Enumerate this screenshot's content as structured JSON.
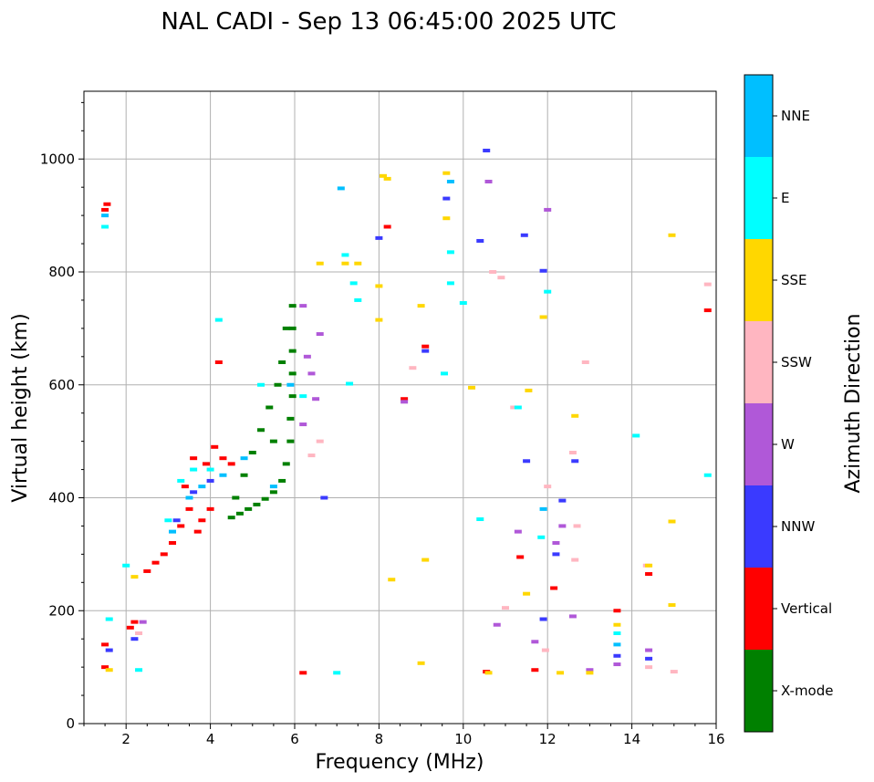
{
  "chart_data": {
    "type": "scatter",
    "title": "NAL CADI - Sep 13 06:45:00 2025 UTC",
    "xlabel": "Frequency (MHz)",
    "ylabel": "Virtual height (km)",
    "xlim": [
      1,
      16
    ],
    "ylim": [
      0,
      1120
    ],
    "xticks": [
      2,
      4,
      6,
      8,
      10,
      12,
      14,
      16
    ],
    "yticks": [
      0,
      200,
      400,
      600,
      800,
      1000
    ],
    "grid": true,
    "colorbar": {
      "label": "Azimuth Direction",
      "categories": [
        "X-mode",
        "Vertical",
        "NNW",
        "W",
        "SSW",
        "SSE",
        "E",
        "NNE"
      ],
      "colors": [
        "#008000",
        "#ff0000",
        "#3a3aff",
        "#b058d8",
        "#ffb6c1",
        "#ffd700",
        "#00ffff",
        "#00bfff"
      ]
    },
    "series": [
      {
        "name": "X-mode",
        "points": [
          [
            4.5,
            365
          ],
          [
            4.7,
            372
          ],
          [
            4.9,
            380
          ],
          [
            5.1,
            388
          ],
          [
            5.3,
            398
          ],
          [
            5.5,
            410
          ],
          [
            5.7,
            430
          ],
          [
            5.8,
            460
          ],
          [
            5.9,
            500
          ],
          [
            5.9,
            540
          ],
          [
            5.95,
            580
          ],
          [
            5.95,
            620
          ],
          [
            5.95,
            660
          ],
          [
            5.95,
            700
          ],
          [
            5.95,
            740
          ],
          [
            5.6,
            600
          ],
          [
            5.4,
            560
          ],
          [
            5.2,
            520
          ],
          [
            5.0,
            480
          ],
          [
            4.8,
            440
          ],
          [
            5.7,
            640
          ],
          [
            5.8,
            700
          ],
          [
            5.5,
            500
          ],
          [
            4.6,
            400
          ]
        ]
      },
      {
        "name": "Vertical",
        "points": [
          [
            1.5,
            100
          ],
          [
            1.5,
            140
          ],
          [
            1.5,
            910
          ],
          [
            1.55,
            920
          ],
          [
            2.1,
            170
          ],
          [
            2.2,
            180
          ],
          [
            2.5,
            270
          ],
          [
            2.7,
            285
          ],
          [
            2.9,
            300
          ],
          [
            3.1,
            320
          ],
          [
            3.3,
            350
          ],
          [
            3.4,
            420
          ],
          [
            3.5,
            380
          ],
          [
            3.6,
            470
          ],
          [
            3.7,
            340
          ],
          [
            3.8,
            360
          ],
          [
            3.9,
            460
          ],
          [
            4.0,
            380
          ],
          [
            4.1,
            490
          ],
          [
            4.2,
            640
          ],
          [
            4.3,
            470
          ],
          [
            4.5,
            460
          ],
          [
            6.2,
            90
          ],
          [
            8.2,
            880
          ],
          [
            8.6,
            575
          ],
          [
            9.1,
            668
          ],
          [
            10.55,
            92
          ],
          [
            11.35,
            295
          ],
          [
            11.7,
            95
          ],
          [
            12.15,
            240
          ],
          [
            13.65,
            200
          ],
          [
            14.4,
            265
          ],
          [
            15.8,
            732
          ]
        ]
      },
      {
        "name": "NNW",
        "points": [
          [
            1.6,
            130
          ],
          [
            2.2,
            150
          ],
          [
            3.2,
            360
          ],
          [
            3.6,
            410
          ],
          [
            4.0,
            430
          ],
          [
            6.7,
            400
          ],
          [
            8.0,
            860
          ],
          [
            9.1,
            660
          ],
          [
            9.6,
            930
          ],
          [
            10.4,
            855
          ],
          [
            10.55,
            1015
          ],
          [
            11.5,
            465
          ],
          [
            11.45,
            865
          ],
          [
            11.9,
            802
          ],
          [
            12.2,
            300
          ],
          [
            12.35,
            395
          ],
          [
            12.65,
            465
          ],
          [
            13.65,
            120
          ],
          [
            14.4,
            115
          ],
          [
            11.9,
            185
          ]
        ]
      },
      {
        "name": "W",
        "points": [
          [
            2.4,
            180
          ],
          [
            6.2,
            740
          ],
          [
            6.3,
            650
          ],
          [
            6.4,
            620
          ],
          [
            6.5,
            575
          ],
          [
            6.6,
            690
          ],
          [
            6.2,
            530
          ],
          [
            8.6,
            570
          ],
          [
            10.8,
            175
          ],
          [
            10.6,
            960
          ],
          [
            11.3,
            340
          ],
          [
            11.7,
            145
          ],
          [
            12.2,
            320
          ],
          [
            12.35,
            350
          ],
          [
            12.6,
            190
          ],
          [
            13.0,
            95
          ],
          [
            13.65,
            105
          ],
          [
            14.4,
            130
          ],
          [
            12.0,
            910
          ]
        ]
      },
      {
        "name": "SSW",
        "points": [
          [
            2.3,
            160
          ],
          [
            6.6,
            500
          ],
          [
            6.4,
            475
          ],
          [
            8.8,
            630
          ],
          [
            10.7,
            800
          ],
          [
            10.9,
            790
          ],
          [
            11.0,
            205
          ],
          [
            11.2,
            560
          ],
          [
            11.95,
            130
          ],
          [
            12.0,
            420
          ],
          [
            12.6,
            480
          ],
          [
            12.65,
            290
          ],
          [
            12.9,
            640
          ],
          [
            14.35,
            280
          ],
          [
            14.4,
            100
          ],
          [
            15.0,
            92
          ],
          [
            15.8,
            778
          ],
          [
            12.7,
            350
          ]
        ]
      },
      {
        "name": "SSE",
        "points": [
          [
            1.6,
            95
          ],
          [
            2.2,
            260
          ],
          [
            6.6,
            815
          ],
          [
            7.5,
            815
          ],
          [
            8.0,
            775
          ],
          [
            8.0,
            715
          ],
          [
            8.1,
            970
          ],
          [
            8.2,
            965
          ],
          [
            8.3,
            255
          ],
          [
            9.0,
            740
          ],
          [
            9.1,
            290
          ],
          [
            9.0,
            107
          ],
          [
            9.6,
            975
          ],
          [
            9.6,
            895
          ],
          [
            10.2,
            595
          ],
          [
            10.6,
            90
          ],
          [
            11.5,
            230
          ],
          [
            11.55,
            590
          ],
          [
            11.9,
            720
          ],
          [
            12.3,
            90
          ],
          [
            12.65,
            545
          ],
          [
            13.0,
            90
          ],
          [
            13.65,
            175
          ],
          [
            14.4,
            280
          ],
          [
            14.95,
            865
          ],
          [
            14.95,
            358
          ],
          [
            14.95,
            210
          ],
          [
            7.2,
            815
          ]
        ]
      },
      {
        "name": "E",
        "points": [
          [
            1.5,
            880
          ],
          [
            1.6,
            185
          ],
          [
            2.3,
            95
          ],
          [
            3.0,
            360
          ],
          [
            3.3,
            430
          ],
          [
            3.6,
            450
          ],
          [
            4.0,
            450
          ],
          [
            4.2,
            715
          ],
          [
            5.2,
            600
          ],
          [
            6.2,
            580
          ],
          [
            7.0,
            90
          ],
          [
            7.2,
            830
          ],
          [
            7.4,
            780
          ],
          [
            7.5,
            750
          ],
          [
            7.3,
            602
          ],
          [
            9.7,
            835
          ],
          [
            9.7,
            780
          ],
          [
            10.0,
            745
          ],
          [
            10.4,
            362
          ],
          [
            11.3,
            560
          ],
          [
            11.85,
            330
          ],
          [
            12.0,
            765
          ],
          [
            13.65,
            160
          ],
          [
            14.1,
            510
          ],
          [
            15.8,
            440
          ],
          [
            2.0,
            280
          ],
          [
            9.55,
            620
          ]
        ]
      },
      {
        "name": "NNE",
        "points": [
          [
            1.5,
            900
          ],
          [
            3.1,
            340
          ],
          [
            3.5,
            400
          ],
          [
            3.8,
            420
          ],
          [
            4.3,
            440
          ],
          [
            5.5,
            420
          ],
          [
            5.9,
            600
          ],
          [
            7.1,
            948
          ],
          [
            9.7,
            960
          ],
          [
            11.9,
            380
          ],
          [
            13.65,
            140
          ],
          [
            4.8,
            470
          ]
        ]
      }
    ]
  }
}
